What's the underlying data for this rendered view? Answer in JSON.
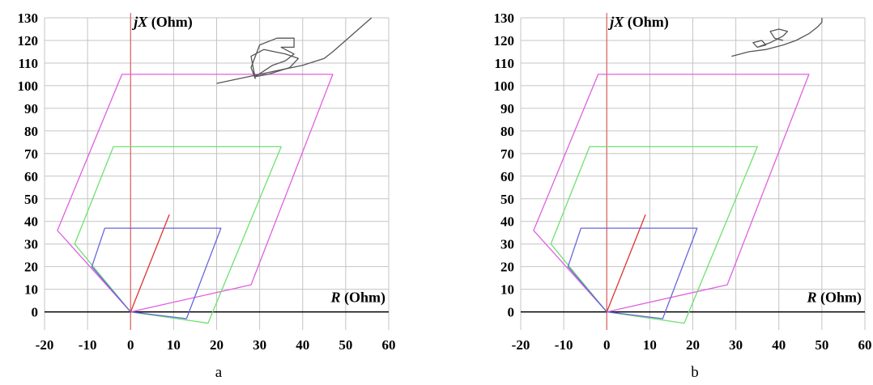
{
  "chart_data": [
    {
      "type": "line",
      "caption": "a",
      "x_axis_label": {
        "var": "R",
        "unit": " (Ohm)"
      },
      "y_axis_label": {
        "var": "jX",
        "unit": " (Ohm)"
      },
      "xlim": [
        -20,
        60
      ],
      "ylim": [
        -8,
        130
      ],
      "x_ticks": [
        -20,
        -10,
        0,
        10,
        20,
        30,
        40,
        50,
        60
      ],
      "y_ticks": [
        0,
        10,
        20,
        30,
        40,
        50,
        60,
        70,
        80,
        90,
        100,
        110,
        120,
        130
      ],
      "grid": true,
      "series": [
        {
          "color": "#e060e0",
          "closed": true,
          "x": [
            -17,
            -2,
            47,
            28,
            0
          ],
          "y": [
            36,
            105,
            105,
            12,
            0
          ]
        },
        {
          "color": "#70e070",
          "closed": true,
          "x": [
            -13,
            -4,
            35,
            18,
            0
          ],
          "y": [
            30,
            73,
            73,
            -5,
            0
          ]
        },
        {
          "color": "#6666dd",
          "closed": true,
          "x": [
            -9,
            -6,
            21,
            13,
            0
          ],
          "y": [
            20,
            37,
            37,
            -3,
            0
          ]
        },
        {
          "color": "#dd3333",
          "closed": false,
          "x": [
            0,
            9
          ],
          "y": [
            0,
            43
          ]
        },
        {
          "color": "#555555",
          "closed": false,
          "x": [
            20,
            25,
            30,
            35,
            40,
            45,
            47,
            50,
            53,
            56
          ],
          "y": [
            101,
            103,
            105,
            107,
            109,
            112,
            115,
            120,
            125,
            130
          ]
        },
        {
          "color": "#555555",
          "closed": false,
          "x": [
            29,
            28,
            30,
            34,
            38,
            38,
            35,
            38,
            36,
            33,
            29,
            32,
            37,
            39,
            36,
            31,
            28,
            29
          ],
          "y": [
            103,
            108,
            118,
            121,
            121,
            117,
            117,
            114,
            111,
            109,
            104,
            105,
            108,
            112,
            114,
            116,
            113,
            103
          ]
        }
      ]
    },
    {
      "type": "line",
      "caption": "b",
      "x_axis_label": {
        "var": "R",
        "unit": " (Ohm)"
      },
      "y_axis_label": {
        "var": "jX",
        "unit": " (Ohm)"
      },
      "xlim": [
        -20,
        60
      ],
      "ylim": [
        -8,
        130
      ],
      "x_ticks": [
        -20,
        -10,
        0,
        10,
        20,
        30,
        40,
        50,
        60
      ],
      "y_ticks": [
        0,
        10,
        20,
        30,
        40,
        50,
        60,
        70,
        80,
        90,
        100,
        110,
        120,
        130
      ],
      "grid": true,
      "series": [
        {
          "color": "#e060e0",
          "closed": true,
          "x": [
            -17,
            -2,
            47,
            28,
            0
          ],
          "y": [
            36,
            105,
            105,
            12,
            0
          ]
        },
        {
          "color": "#70e070",
          "closed": true,
          "x": [
            -13,
            -4,
            35,
            18,
            0
          ],
          "y": [
            30,
            73,
            73,
            -5,
            0
          ]
        },
        {
          "color": "#6666dd",
          "closed": true,
          "x": [
            -9,
            -6,
            21,
            13,
            0
          ],
          "y": [
            20,
            37,
            37,
            -3,
            0
          ]
        },
        {
          "color": "#dd3333",
          "closed": false,
          "x": [
            0,
            9
          ],
          "y": [
            0,
            43
          ]
        },
        {
          "color": "#555555",
          "closed": false,
          "x": [
            29,
            33,
            37,
            41,
            44,
            47,
            49,
            50,
            50
          ],
          "y": [
            113,
            115,
            116,
            118,
            120,
            123,
            126,
            128,
            130
          ]
        },
        {
          "color": "#555555",
          "closed": false,
          "x": [
            35,
            37,
            36,
            34,
            35,
            38,
            41,
            42,
            40,
            38,
            39,
            41
          ],
          "y": [
            117,
            118,
            120,
            119,
            117,
            119,
            122,
            124,
            125,
            124,
            121,
            120
          ]
        }
      ]
    }
  ]
}
